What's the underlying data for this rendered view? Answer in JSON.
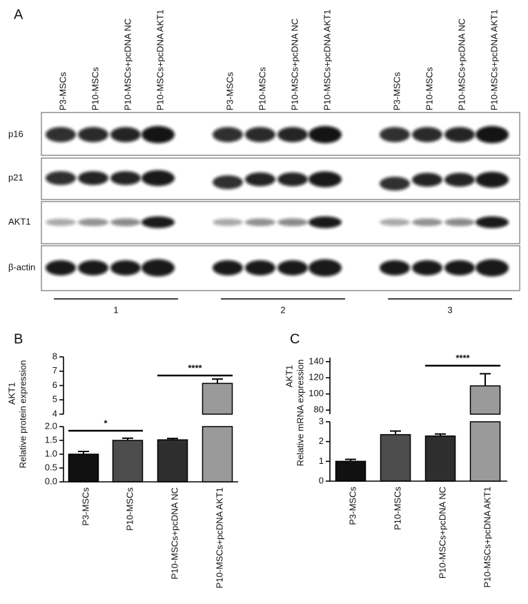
{
  "panels": {
    "a": "A",
    "b": "B",
    "c": "C"
  },
  "blot": {
    "lanes": [
      "P3-MSCs",
      "P10-MSCs",
      "P10-MSCs+pcDNA NC",
      "P10-MSCs+pcDNA AKT1"
    ],
    "proteins": [
      "p16",
      "p21",
      "AKT1",
      "β-actin"
    ],
    "groups": [
      "1",
      "2",
      "3"
    ]
  },
  "chart_data": [
    {
      "type": "bar",
      "y_title": "AKT1",
      "ylabel": "Relative protein expression",
      "categories": [
        "P3-MSCs",
        "P10-MSCs",
        "P10-MSCs+pcDNA NC",
        "P10-MSCs+pcDNA AKT1"
      ],
      "values": [
        1.0,
        1.5,
        1.52,
        6.15
      ],
      "errors": [
        0.1,
        0.08,
        0.05,
        0.3
      ],
      "colors": [
        "#111111",
        "#4d4d4d",
        "#2e2e2e",
        "#9a9a9a"
      ],
      "y_segments": [
        {
          "ylim": [
            0,
            2
          ],
          "yticks": [
            {
              "value": 0,
              "label": "0.0"
            },
            {
              "value": 0.5,
              "label": "0.5"
            },
            {
              "value": 1,
              "label": "1.0"
            },
            {
              "value": 1.5,
              "label": "1.5"
            },
            {
              "value": 2,
              "label": "2.0"
            }
          ]
        },
        {
          "ylim": [
            4,
            8
          ],
          "yticks": [
            4,
            5,
            6,
            7,
            8
          ]
        }
      ],
      "significance": [
        {
          "label": "*",
          "from": 0,
          "to": 1,
          "y": 1.85
        },
        {
          "label": "****",
          "from": 2,
          "to": 3,
          "y": 6.7
        }
      ]
    },
    {
      "type": "bar",
      "y_title": "AKT1",
      "ylabel": "Relative mRNA expression",
      "categories": [
        "P3-MSCs",
        "P10-MSCs",
        "P10-MSCs+pcDNA NC",
        "P10-MSCs+pcDNA AKT1"
      ],
      "values": [
        1.0,
        2.35,
        2.28,
        110
      ],
      "errors": [
        0.1,
        0.18,
        0.1,
        15
      ],
      "colors": [
        "#111111",
        "#4d4d4d",
        "#2e2e2e",
        "#9a9a9a"
      ],
      "y_segments": [
        {
          "ylim": [
            0,
            3
          ],
          "yticks": [
            0,
            1,
            2,
            3
          ]
        },
        {
          "ylim": [
            75,
            145
          ],
          "yticks": [
            80,
            100,
            120,
            140
          ]
        }
      ],
      "significance": [
        {
          "label": "****",
          "from": 2,
          "to": 3,
          "y": 135
        }
      ]
    }
  ]
}
